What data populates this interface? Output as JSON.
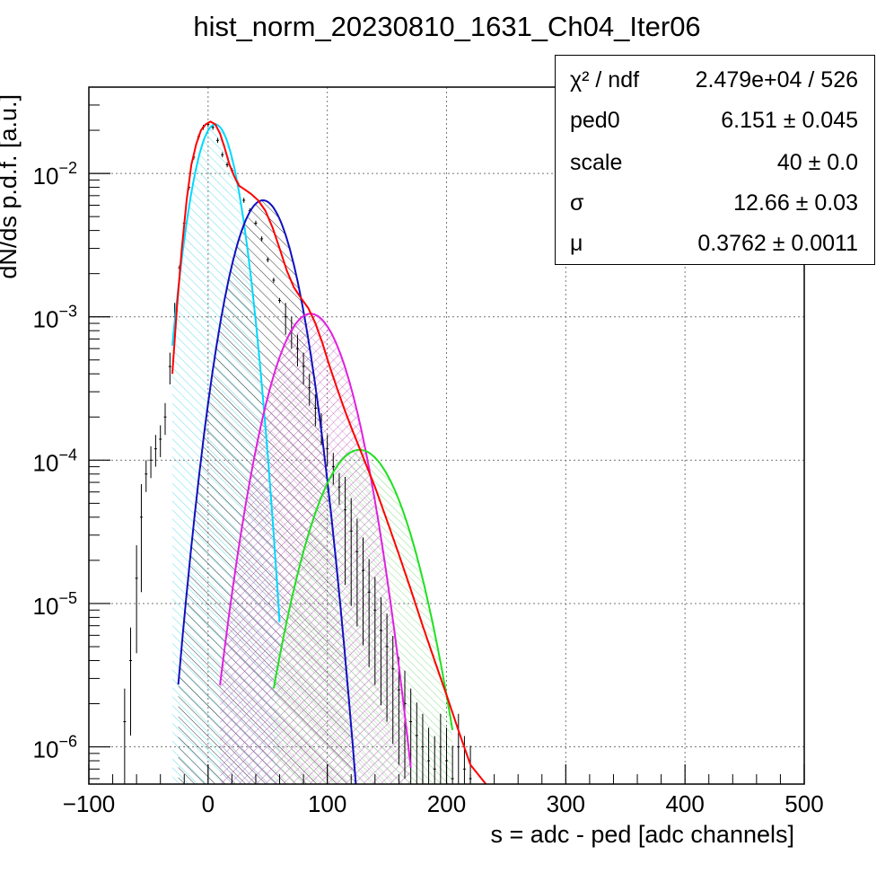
{
  "title": "hist_norm_20230810_1631_Ch04_Iter06",
  "stats_box": {
    "rows": [
      {
        "name": "χ² / ndf",
        "value": "2.479e+04 / 526"
      },
      {
        "name": "ped0",
        "value": "6.151 ± 0.045"
      },
      {
        "name": "scale",
        "value": "40 ± 0.0"
      },
      {
        "name": "σ",
        "value": "12.66 ± 0.03"
      },
      {
        "name": "μ",
        "value": "0.3762 ± 0.0011"
      }
    ]
  },
  "chart_data": {
    "type": "line",
    "title": "hist_norm_20230810_1631_Ch04_Iter06",
    "xlabel": "s = adc - ped [adc channels]",
    "ylabel": "dN/ds p.d.f. [a.u.]",
    "xlim": [
      -100,
      500
    ],
    "ylim": [
      5.5e-07,
      0.04
    ],
    "yscale": "log",
    "grid": true,
    "x_ticks": [
      -100,
      0,
      100,
      200,
      300,
      400,
      500
    ],
    "x_tick_labels": [
      "−100",
      "0",
      "100",
      "200",
      "300",
      "400",
      "500"
    ],
    "y_ticks": [
      1e-06,
      1e-05,
      0.0001,
      0.001,
      0.01
    ],
    "y_tick_labels": [
      {
        "base": "10",
        "exp": "−6"
      },
      {
        "base": "10",
        "exp": "−5"
      },
      {
        "base": "10",
        "exp": "−4"
      },
      {
        "base": "10",
        "exp": "−3"
      },
      {
        "base": "10",
        "exp": "−2"
      }
    ],
    "series": [
      {
        "kind": "data-histogram",
        "color": "#000000",
        "x": [
          -70,
          -65,
          -60,
          -56,
          -52,
          -48,
          -44,
          -40,
          -36,
          -32,
          -28,
          -24,
          -20,
          -16,
          -12,
          -8,
          -4,
          0,
          4,
          8,
          12,
          16,
          20,
          25,
          30,
          35,
          40,
          45,
          50,
          55,
          60,
          65,
          70,
          75,
          80,
          85,
          90,
          95,
          100,
          105,
          110,
          115,
          120,
          125,
          130,
          135,
          140,
          145,
          150,
          155,
          160,
          165,
          170,
          175,
          180,
          185,
          190,
          195,
          200,
          205,
          210,
          215,
          220
        ],
        "y": [
          1.5e-06,
          4e-06,
          1.5e-05,
          4e-05,
          8e-05,
          0.0001,
          0.00012,
          0.00014,
          0.0002,
          0.00045,
          0.001,
          0.0022,
          0.0045,
          0.008,
          0.013,
          0.018,
          0.021,
          0.022,
          0.021,
          0.017,
          0.0135,
          0.0115,
          0.0105,
          0.0085,
          0.0065,
          0.0055,
          0.0045,
          0.0035,
          0.0025,
          0.0018,
          0.0013,
          0.001,
          0.0008,
          0.0006,
          0.00045,
          0.00032,
          0.00023,
          0.00017,
          0.00012,
          9e-05,
          6.5e-05,
          4.5e-05,
          3.2e-05,
          2.3e-05,
          1.7e-05,
          1.2e-05,
          9e-06,
          6.5e-06,
          5e-06,
          3.5e-06,
          2.5e-06,
          2e-06,
          1.5e-06,
          1.2e-06,
          1e-06,
          8e-07,
          7e-07,
          1e-06,
          8e-07,
          6e-07,
          1e-06,
          7e-07,
          6e-07
        ]
      },
      {
        "kind": "total-fit",
        "color": "#ff0000",
        "x": [
          -30,
          -26,
          -22,
          -18,
          -14,
          -10,
          -6,
          -2,
          2,
          6,
          10,
          14,
          18,
          22,
          26,
          30,
          36,
          42,
          48,
          54,
          60,
          66,
          72,
          78,
          84,
          90,
          96,
          102,
          108,
          114,
          120,
          130,
          140,
          150,
          160,
          170,
          180,
          190,
          200,
          210,
          220,
          233
        ],
        "y": [
          0.0004,
          0.0012,
          0.003,
          0.0065,
          0.0115,
          0.016,
          0.02,
          0.022,
          0.023,
          0.022,
          0.019,
          0.015,
          0.0115,
          0.0095,
          0.0082,
          0.0078,
          0.0072,
          0.0065,
          0.0055,
          0.0042,
          0.003,
          0.0021,
          0.0016,
          0.00135,
          0.00115,
          0.0009,
          0.00065,
          0.00045,
          0.00032,
          0.00023,
          0.00017,
          0.000105,
          6.5e-05,
          3.8e-05,
          2.2e-05,
          1.25e-05,
          7e-06,
          4e-06,
          2.3e-06,
          1.3e-06,
          7.5e-07,
          5.5e-07
        ]
      },
      {
        "kind": "gaussian-component",
        "name": "",
        "color": "#00d8ff",
        "fill": "#7fe8ee",
        "mean": 6,
        "sigma": 13.5,
        "peak": 0.022,
        "range": [
          -30,
          60
        ]
      },
      {
        "kind": "gaussian-component",
        "name": "",
        "color": "#1010c0",
        "fill": "#000000",
        "mean": 46,
        "sigma": 18,
        "peak": 0.0065,
        "range": [
          -25,
          130
        ]
      },
      {
        "kind": "gaussian-component",
        "name": "",
        "color": "#e020e0",
        "fill": "#cc55cc",
        "mean": 86,
        "sigma": 22,
        "peak": 0.00105,
        "range": [
          10,
          170
        ]
      },
      {
        "kind": "gaussian-component",
        "name": "",
        "color": "#20e020",
        "fill": "#66dd66",
        "mean": 127,
        "sigma": 26,
        "peak": 0.000118,
        "range": [
          55,
          205
        ]
      }
    ]
  }
}
